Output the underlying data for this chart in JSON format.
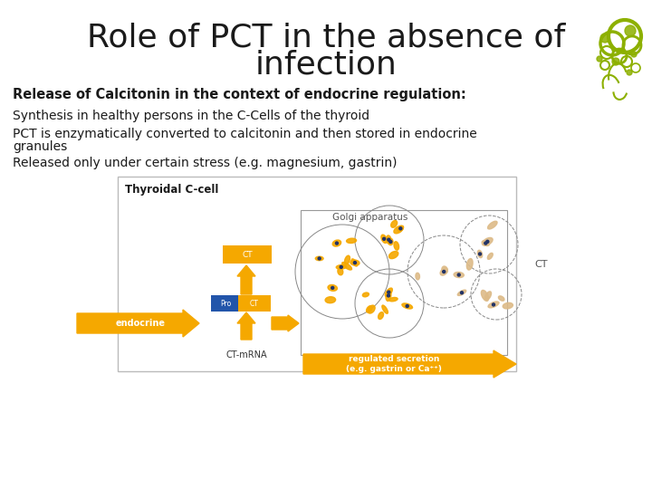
{
  "title_line1": "Role of PCT in the absence of",
  "title_line2": "infection",
  "title_fontsize": 26,
  "title_color": "#1a1a1a",
  "bg_color": "#ffffff",
  "bold_text": "Release of Calcitonin in the context of endocrine regulation:",
  "bullet1": "Synthesis in healthy persons in the C-Cells of the thyroid",
  "bullet2": "PCT is enzymatically converted to calcitonin and then stored in endocrine",
  "bullet2b": "granules",
  "bullet3": "Released only under certain stress (e.g. magnesium, gastrin)",
  "text_fontsize": 10,
  "bold_fontsize": 10.5,
  "text_color": "#1a1a1a",
  "accent_color": "#8db000",
  "orange_color": "#f5a800",
  "blue_color": "#2255aa"
}
